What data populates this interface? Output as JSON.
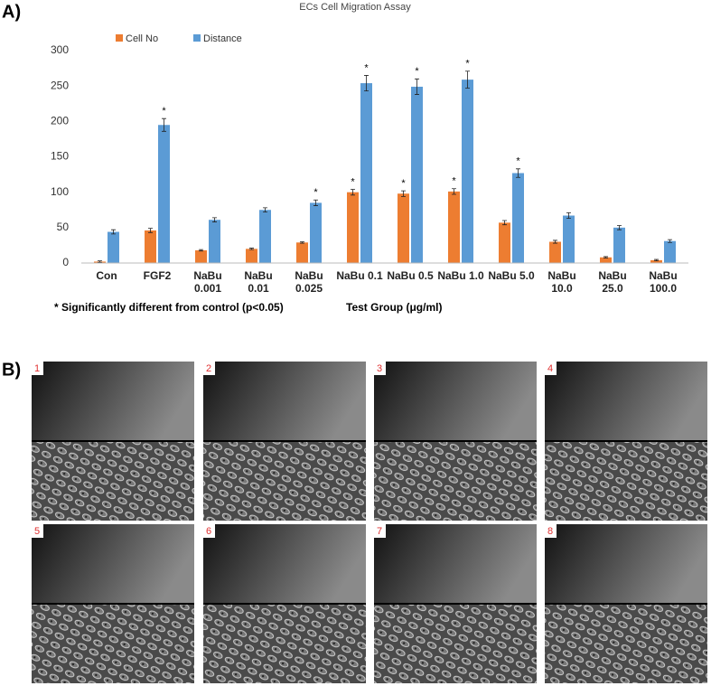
{
  "chart_data": {
    "type": "bar",
    "panel_label": "A)",
    "title": "ECs Cell Migration Assay",
    "categories": [
      "Con",
      "FGF2",
      "NaBu 0.001",
      "NaBu 0.01",
      "NaBu 0.025",
      "NaBu 0.1",
      "NaBu 0.5",
      "NaBu 1.0",
      "NaBu 5.0",
      "NaBu 10.0",
      "NaBu 25.0",
      "NaBu 100.0"
    ],
    "series": [
      {
        "name": "Cell No",
        "color": "#ed7d31",
        "values": [
          2,
          46,
          18,
          20,
          29,
          100,
          98,
          101,
          57,
          30,
          8,
          4
        ],
        "errors": [
          1,
          3,
          1,
          1,
          1,
          4,
          4,
          4,
          3,
          2,
          1,
          1
        ],
        "significance": [
          null,
          null,
          null,
          null,
          null,
          "*",
          "*",
          "*",
          null,
          null,
          null,
          null
        ]
      },
      {
        "name": "Distance",
        "color": "#5b9bd5",
        "values": [
          44,
          195,
          61,
          75,
          85,
          254,
          249,
          259,
          127,
          67,
          50,
          31
        ],
        "errors": [
          3,
          9,
          3,
          3,
          4,
          11,
          11,
          12,
          6,
          4,
          3,
          2
        ],
        "significance": [
          null,
          "*",
          null,
          null,
          "*",
          "*",
          "*",
          "*",
          "*",
          null,
          null,
          null
        ]
      }
    ],
    "ylim": [
      0,
      300
    ],
    "yticks": [
      0,
      50,
      100,
      150,
      200,
      250,
      300
    ],
    "grid": false,
    "footnote": "* Significantly different from control (p<0.05)",
    "x_label": "Test Group (μg/ml)"
  },
  "panel_b": {
    "label": "B)",
    "images": [
      {
        "label": "1"
      },
      {
        "label": "2"
      },
      {
        "label": "3"
      },
      {
        "label": "4"
      },
      {
        "label": "5"
      },
      {
        "label": "6"
      },
      {
        "label": "7"
      },
      {
        "label": "8"
      }
    ]
  }
}
